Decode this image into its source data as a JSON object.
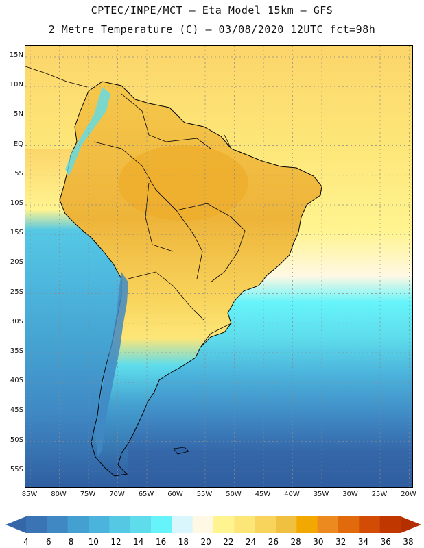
{
  "title_line1": "CPTEC/INPE/MCT —  Eta Model 15km — GFS",
  "title_line2": "2 Metre Temperature (C) — 03/08/2020 12UTC fct=98h",
  "lat_labels": [
    "15N",
    "10N",
    "5N",
    "EQ",
    "5S",
    "10S",
    "15S",
    "20S",
    "25S",
    "30S",
    "35S",
    "40S",
    "45S",
    "50S",
    "55S"
  ],
  "lon_labels": [
    "85W",
    "80W",
    "75W",
    "70W",
    "65W",
    "60W",
    "55W",
    "50W",
    "45W",
    "40W",
    "35W",
    "30W",
    "25W",
    "20W"
  ],
  "colorbar": {
    "ticks": [
      "4",
      "6",
      "8",
      "10",
      "12",
      "14",
      "16",
      "18",
      "20",
      "22",
      "24",
      "26",
      "28",
      "30",
      "32",
      "34",
      "36",
      "38"
    ],
    "colors": [
      "#3a74b4",
      "#3f88c4",
      "#44a0d0",
      "#4cb4dc",
      "#55c8e4",
      "#5edcec",
      "#66f4fa",
      "#d8f6fc",
      "#fff8e4",
      "#fff490",
      "#fde678",
      "#f8d45c",
      "#f0c040",
      "#f2a800",
      "#ec8a20",
      "#e06a0c",
      "#d24c06",
      "#c03800"
    ],
    "under_color": "#3466a8",
    "over_color": "#b42e00"
  },
  "colors": {
    "ocean_south": "#2f64a8",
    "ocean_mid": "#4cb4dc",
    "ocean_cyan": "#66f4fa",
    "ocean_tropical": "#fde678",
    "land_hot": "#f0c040",
    "land_warm": "#f8d45c",
    "andes_cold": "#3f88c4"
  }
}
